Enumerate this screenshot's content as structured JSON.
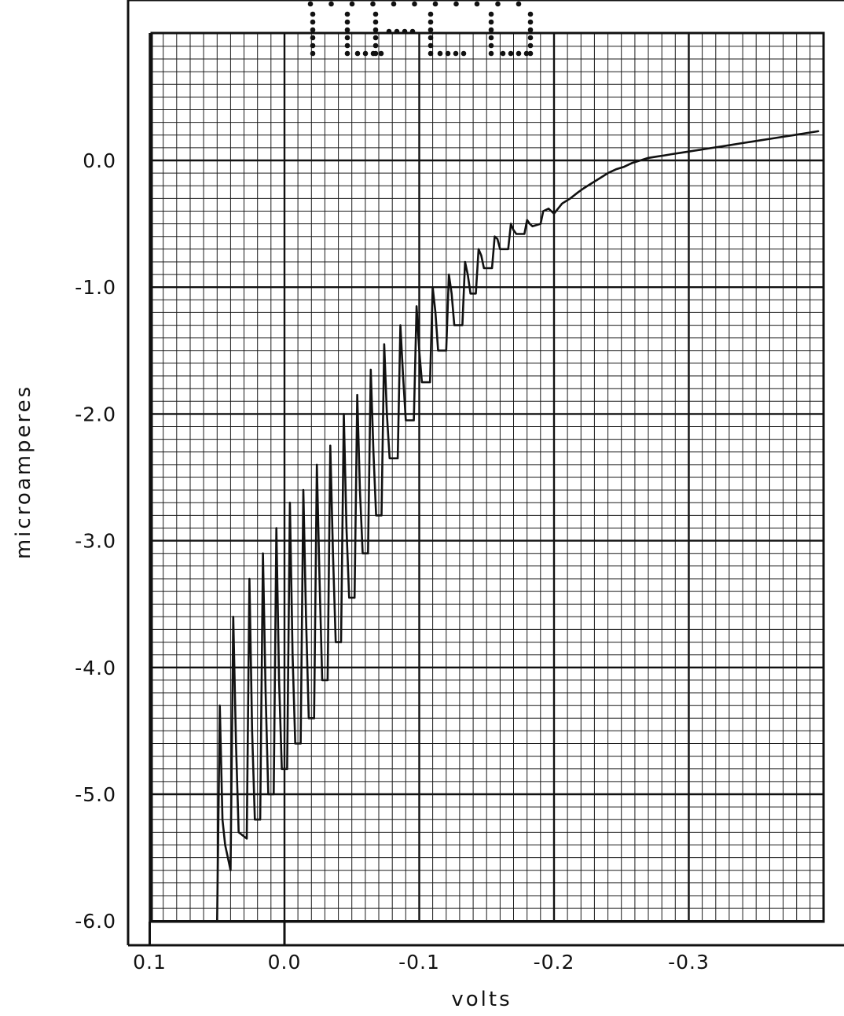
{
  "chart_data": {
    "type": "line",
    "title": "",
    "xlabel": "volts",
    "ylabel": "microamperes",
    "x_ticks": [
      0.1,
      0.0,
      -0.1,
      -0.2,
      -0.3
    ],
    "x_tick_labels": [
      "0.1",
      "0.0",
      "-0.1",
      "-0.2",
      "-0.3"
    ],
    "y_ticks": [
      0.0,
      -1.0,
      -2.0,
      -3.0,
      -4.0,
      -5.0,
      -6.0
    ],
    "y_tick_labels": [
      "0.0",
      "-1.0",
      "-2.0",
      "-3.0",
      "-4.0",
      "-5.0",
      "-6.0"
    ],
    "xlim": [
      0.117,
      -0.398
    ],
    "ylim": [
      -6.0,
      1.0
    ],
    "grid": true,
    "minor_grid_divisions": 10,
    "legend": "none",
    "colors": {
      "trace": "#111111",
      "grid": "#1a1a1a"
    },
    "series": [
      {
        "x": [
          0.05,
          0.048,
          0.046,
          0.044,
          0.04,
          0.038,
          0.036,
          0.034,
          0.028,
          0.026,
          0.024,
          0.022,
          0.018,
          0.016,
          0.014,
          0.012,
          0.008,
          0.006,
          0.004,
          0.002,
          -0.002,
          -0.004,
          -0.006,
          -0.008,
          -0.012,
          -0.014,
          -0.016,
          -0.018,
          -0.022,
          -0.024,
          -0.026,
          -0.028,
          -0.032,
          -0.034,
          -0.036,
          -0.038,
          -0.042,
          -0.044,
          -0.046,
          -0.048,
          -0.052,
          -0.054,
          -0.056,
          -0.058,
          -0.062,
          -0.064,
          -0.066,
          -0.068,
          -0.072,
          -0.074,
          -0.076,
          -0.078,
          -0.084,
          -0.086,
          -0.088,
          -0.09,
          -0.096,
          -0.098,
          -0.1,
          -0.102,
          -0.108,
          -0.11,
          -0.112,
          -0.114,
          -0.12,
          -0.122,
          -0.124,
          -0.126,
          -0.132,
          -0.134,
          -0.136,
          -0.138,
          -0.142,
          -0.144,
          -0.146,
          -0.148,
          -0.154,
          -0.156,
          -0.158,
          -0.16,
          -0.166,
          -0.168,
          -0.17,
          -0.172,
          -0.178,
          -0.18,
          -0.182,
          -0.184,
          -0.19,
          -0.192,
          -0.196,
          -0.2,
          -0.206,
          -0.212,
          -0.218,
          -0.222,
          -0.228,
          -0.234,
          -0.24,
          -0.246,
          -0.252,
          -0.258,
          -0.264,
          -0.27,
          -0.276,
          -0.282,
          -0.288,
          -0.294,
          -0.3,
          -0.306,
          -0.312,
          -0.318,
          -0.324,
          -0.33,
          -0.336,
          -0.342,
          -0.348,
          -0.354,
          -0.36,
          -0.366,
          -0.372,
          -0.378,
          -0.384,
          -0.39,
          -0.396
        ],
        "y": [
          -6.0,
          -4.3,
          -5.2,
          -5.4,
          -5.6,
          -3.6,
          -4.6,
          -5.3,
          -5.35,
          -3.3,
          -4.5,
          -5.2,
          -5.2,
          -3.1,
          -4.2,
          -5.0,
          -5.0,
          -2.9,
          -4.1,
          -4.8,
          -4.8,
          -2.7,
          -3.9,
          -4.6,
          -4.6,
          -2.6,
          -3.6,
          -4.4,
          -4.4,
          -2.4,
          -3.3,
          -4.1,
          -4.1,
          -2.25,
          -3.1,
          -3.8,
          -3.8,
          -2.0,
          -2.9,
          -3.45,
          -3.45,
          -1.85,
          -2.6,
          -3.1,
          -3.1,
          -1.65,
          -2.3,
          -2.8,
          -2.8,
          -1.45,
          -2.0,
          -2.35,
          -2.35,
          -1.3,
          -1.7,
          -2.05,
          -2.05,
          -1.15,
          -1.5,
          -1.75,
          -1.75,
          -1.0,
          -1.2,
          -1.5,
          -1.5,
          -0.9,
          -1.05,
          -1.3,
          -1.3,
          -0.8,
          -0.9,
          -1.05,
          -1.05,
          -0.7,
          -0.75,
          -0.85,
          -0.85,
          -0.6,
          -0.62,
          -0.7,
          -0.7,
          -0.5,
          -0.55,
          -0.58,
          -0.58,
          -0.47,
          -0.5,
          -0.52,
          -0.5,
          -0.4,
          -0.38,
          -0.42,
          -0.34,
          -0.3,
          -0.25,
          -0.22,
          -0.18,
          -0.14,
          -0.1,
          -0.07,
          -0.05,
          -0.02,
          0.0,
          0.02,
          0.03,
          0.04,
          0.05,
          0.06,
          0.07,
          0.08,
          0.09,
          0.1,
          0.11,
          0.12,
          0.13,
          0.14,
          0.15,
          0.16,
          0.17,
          0.18,
          0.19,
          0.2,
          0.21,
          0.22,
          0.23
        ]
      }
    ]
  }
}
